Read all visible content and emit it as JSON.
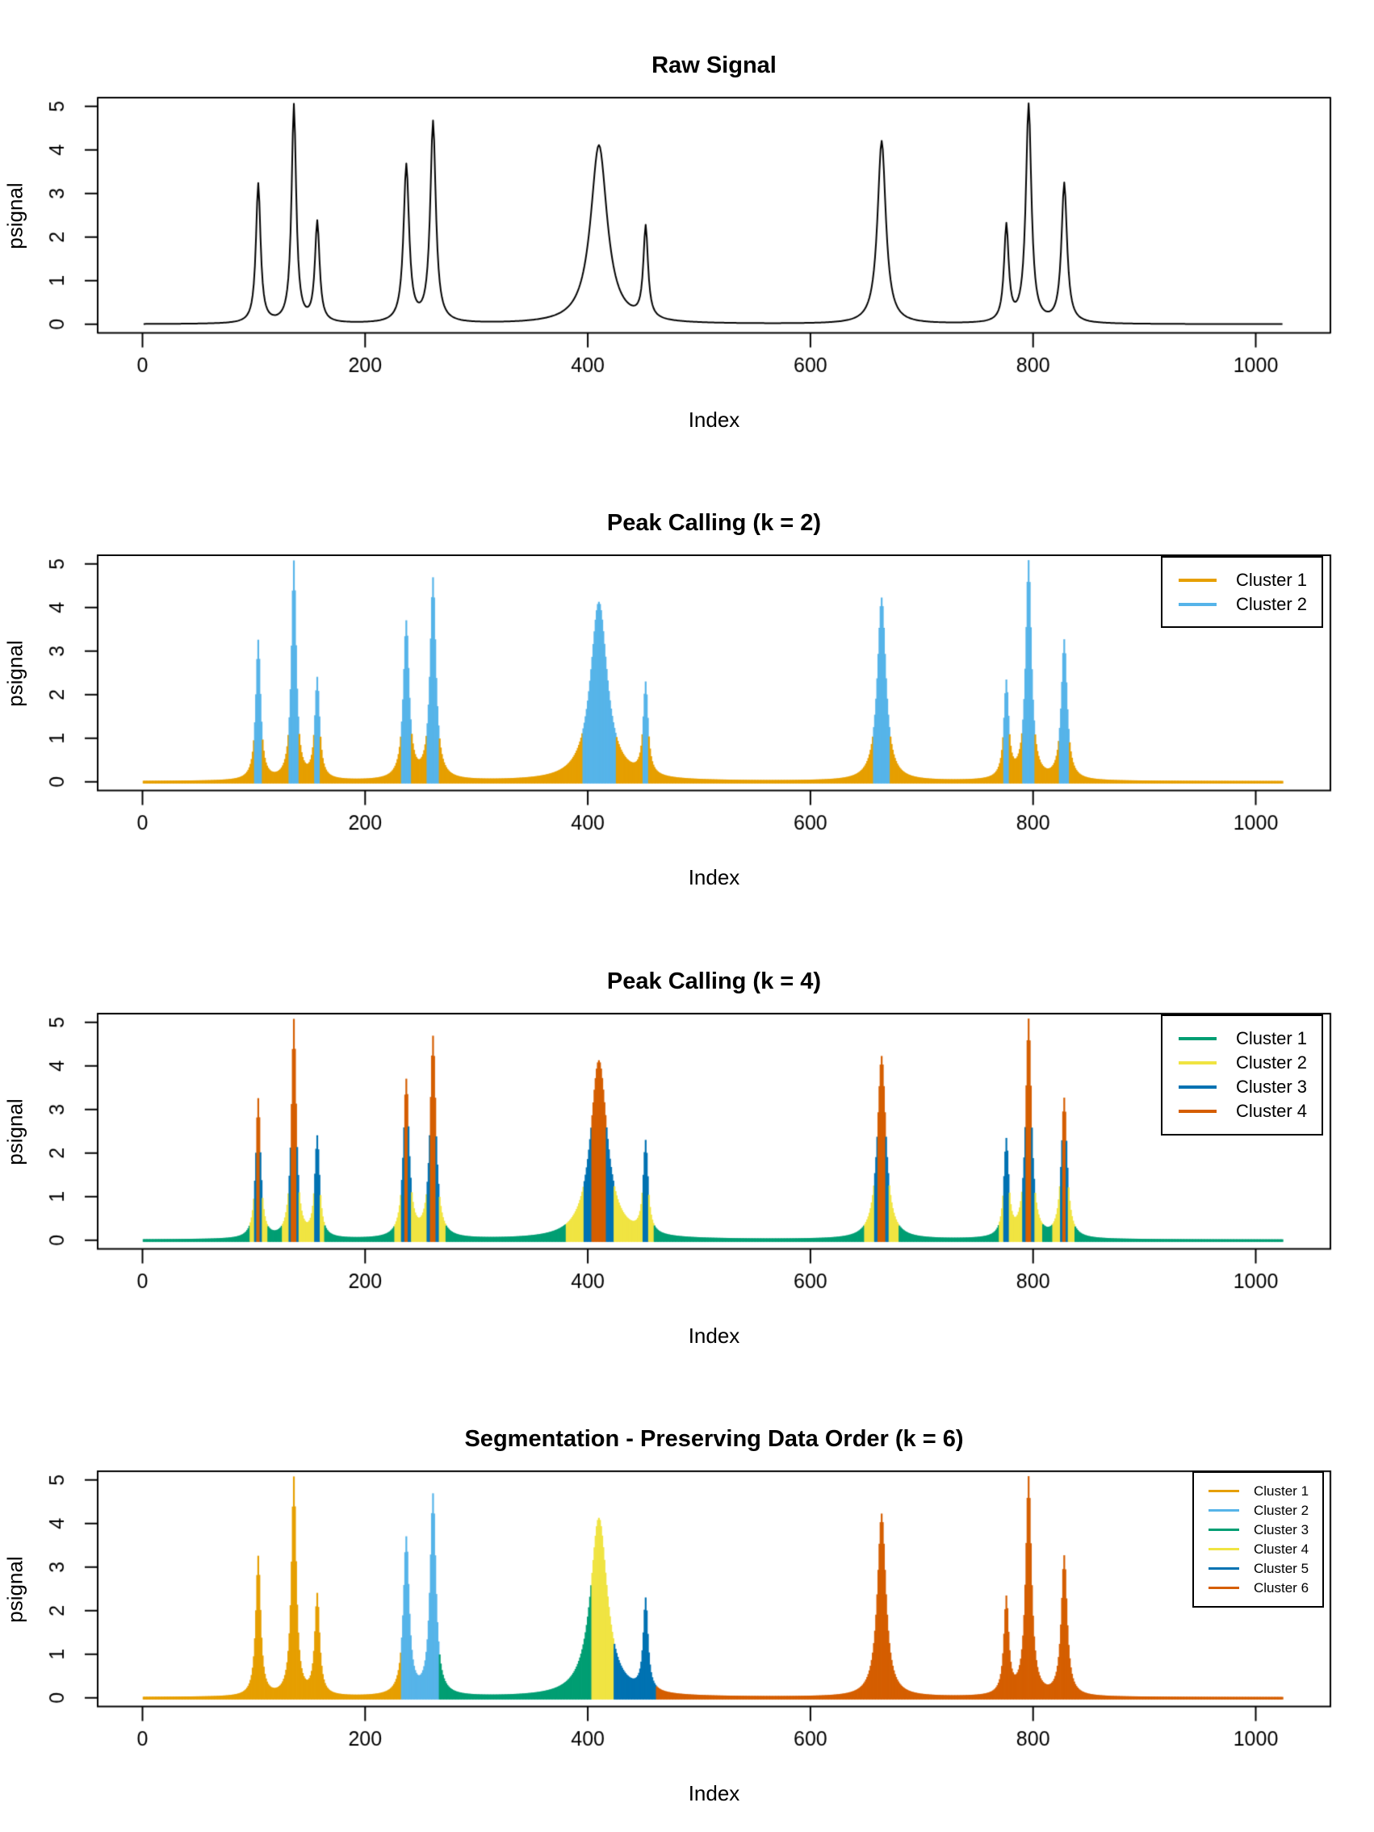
{
  "chart_data": {
    "type": "line",
    "x_label": "Index",
    "y_label": "psignal",
    "x_range": [
      1,
      1024
    ],
    "y_range": [
      0,
      5
    ],
    "x_ticks": [
      0,
      200,
      400,
      600,
      800,
      1000
    ],
    "y_ticks": [
      0,
      1,
      2,
      3,
      4,
      5
    ],
    "grid": false,
    "signal_peaks": [
      {
        "center": 104,
        "height": 3.2,
        "hwhm": 2.5
      },
      {
        "center": 136,
        "height": 5.0,
        "hwhm": 2.5
      },
      {
        "center": 157,
        "height": 2.3,
        "hwhm": 2.5
      },
      {
        "center": 237,
        "height": 3.6,
        "hwhm": 3.0
      },
      {
        "center": 261,
        "height": 4.6,
        "hwhm": 3.0
      },
      {
        "center": 410,
        "height": 4.1,
        "hwhm": 9.0
      },
      {
        "center": 452,
        "height": 2.1,
        "hwhm": 2.5
      },
      {
        "center": 664,
        "height": 4.2,
        "hwhm": 4.5
      },
      {
        "center": 776,
        "height": 2.2,
        "hwhm": 2.5
      },
      {
        "center": 796,
        "height": 5.0,
        "hwhm": 3.0
      },
      {
        "center": 828,
        "height": 3.2,
        "hwhm": 3.0
      }
    ],
    "panels": [
      {
        "title": "Raw Signal",
        "mode": "line",
        "color": "#000000",
        "legend": []
      },
      {
        "title": "Peak Calling (k = 2)",
        "mode": "value-clusters",
        "thresholds": [
          1.1
        ],
        "cluster_colors": [
          "#E69F00",
          "#56B4E9"
        ],
        "legend_position": "topright",
        "legend": [
          {
            "label": "Cluster 1",
            "color": "#E69F00"
          },
          {
            "label": "Cluster 2",
            "color": "#56B4E9"
          }
        ]
      },
      {
        "title": "Peak Calling (k = 4)",
        "mode": "value-clusters",
        "thresholds": [
          0.35,
          1.25,
          2.6
        ],
        "cluster_colors": [
          "#009E73",
          "#F0E442",
          "#0072B2",
          "#D55E00"
        ],
        "legend_position": "topright",
        "legend": [
          {
            "label": "Cluster 1",
            "color": "#009E73"
          },
          {
            "label": "Cluster 2",
            "color": "#F0E442"
          },
          {
            "label": "Cluster 3",
            "color": "#0072B2"
          },
          {
            "label": "Cluster 4",
            "color": "#D55E00"
          }
        ]
      },
      {
        "title": "Segmentation - Preserving Data Order (k = 6)",
        "mode": "segments",
        "segments": [
          {
            "start": 1,
            "end": 232,
            "color": "#E69F00"
          },
          {
            "start": 233,
            "end": 266,
            "color": "#56B4E9"
          },
          {
            "start": 267,
            "end": 403,
            "color": "#009E73"
          },
          {
            "start": 404,
            "end": 423,
            "color": "#F0E442"
          },
          {
            "start": 424,
            "end": 461,
            "color": "#0072B2"
          },
          {
            "start": 462,
            "end": 1024,
            "color": "#D55E00"
          }
        ],
        "legend_position": "topright",
        "legend": [
          {
            "label": "Cluster 1",
            "color": "#E69F00"
          },
          {
            "label": "Cluster 2",
            "color": "#56B4E9"
          },
          {
            "label": "Cluster 3",
            "color": "#009E73"
          },
          {
            "label": "Cluster 4",
            "color": "#F0E442"
          },
          {
            "label": "Cluster 5",
            "color": "#0072B2"
          },
          {
            "label": "Cluster 6",
            "color": "#D55E00"
          }
        ]
      }
    ]
  }
}
